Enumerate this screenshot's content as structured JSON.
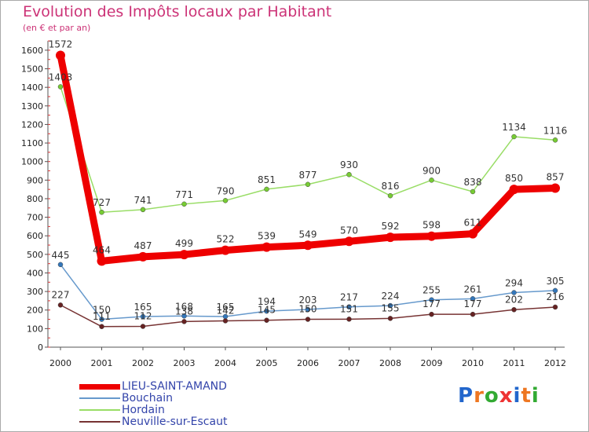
{
  "title": "Evolution des Impôts locaux par Habitant",
  "subtitle": "(en € et par an)",
  "logo": {
    "letters": [
      "P",
      "r",
      "o",
      "x",
      "i",
      "t",
      "i"
    ],
    "colors": [
      "#2266cc",
      "#ee7722",
      "#33aa33",
      "#ee3333",
      "#2266cc",
      "#ee7722",
      "#33aa33"
    ]
  },
  "chart_data": {
    "type": "line",
    "title": "Evolution des Impôts locaux par Habitant",
    "subtitle": "(en € et par an)",
    "x": [
      "2000",
      "2001",
      "2002",
      "2003",
      "2004",
      "2005",
      "2006",
      "2007",
      "2008",
      "2009",
      "2010",
      "2011",
      "2012"
    ],
    "yticks": [
      0,
      100,
      200,
      300,
      400,
      500,
      600,
      700,
      800,
      900,
      1000,
      1100,
      1200,
      1300,
      1400,
      1500,
      1600
    ],
    "ylim": [
      0,
      1650
    ],
    "grid": false,
    "legend_position": "bottom-left",
    "series": [
      {
        "name": "Hordain",
        "color": "#99dd66",
        "dot": "#77cc33",
        "stroke": 1.5,
        "values": [
          1403,
          727,
          741,
          771,
          790,
          851,
          877,
          930,
          816,
          900,
          838,
          1134,
          1116
        ],
        "labels": [
          "1403",
          "727",
          "741",
          "771",
          "790",
          "851",
          "877",
          "930",
          "816",
          "900",
          "838",
          "1134",
          "1116"
        ]
      },
      {
        "name": "Bouchain",
        "color": "#6699cc",
        "dot": "#3377bb",
        "stroke": 1.5,
        "values": [
          445,
          150,
          165,
          168,
          165,
          194,
          203,
          217,
          224,
          255,
          261,
          294,
          305
        ],
        "labels": [
          "445",
          "150",
          "165",
          "168",
          "165",
          "194",
          "203",
          "217",
          "224",
          "255",
          "261",
          "294",
          "305"
        ]
      },
      {
        "name": "Neuville-sur-Escaut",
        "color": "#773333",
        "dot": "#662222",
        "stroke": 1.5,
        "values": [
          227,
          111,
          112,
          138,
          142,
          145,
          150,
          151,
          155,
          177,
          177,
          202,
          216
        ],
        "labels": [
          "227",
          "111",
          "112",
          "138",
          "142",
          "145",
          "150",
          "151",
          "155",
          "177",
          "177",
          "202",
          "216"
        ]
      },
      {
        "name": "LIEU-SAINT-AMAND",
        "color": "#ee0000",
        "dot": "#ee0000",
        "stroke": 9,
        "values": [
          1572,
          464,
          487,
          499,
          522,
          539,
          549,
          570,
          592,
          598,
          611,
          850,
          857
        ],
        "labels": [
          "1572",
          "464",
          "487",
          "499",
          "522",
          "539",
          "549",
          "570",
          "592",
          "598",
          "611",
          "850",
          "857"
        ]
      }
    ],
    "legend": [
      {
        "name": "LIEU-SAINT-AMAND",
        "color": "#ee0000",
        "thickness": 7
      },
      {
        "name": "Bouchain",
        "color": "#6699cc",
        "thickness": 2
      },
      {
        "name": "Hordain",
        "color": "#99dd66",
        "thickness": 2
      },
      {
        "name": "Neuville-sur-Escaut",
        "color": "#773333",
        "thickness": 2
      }
    ]
  }
}
